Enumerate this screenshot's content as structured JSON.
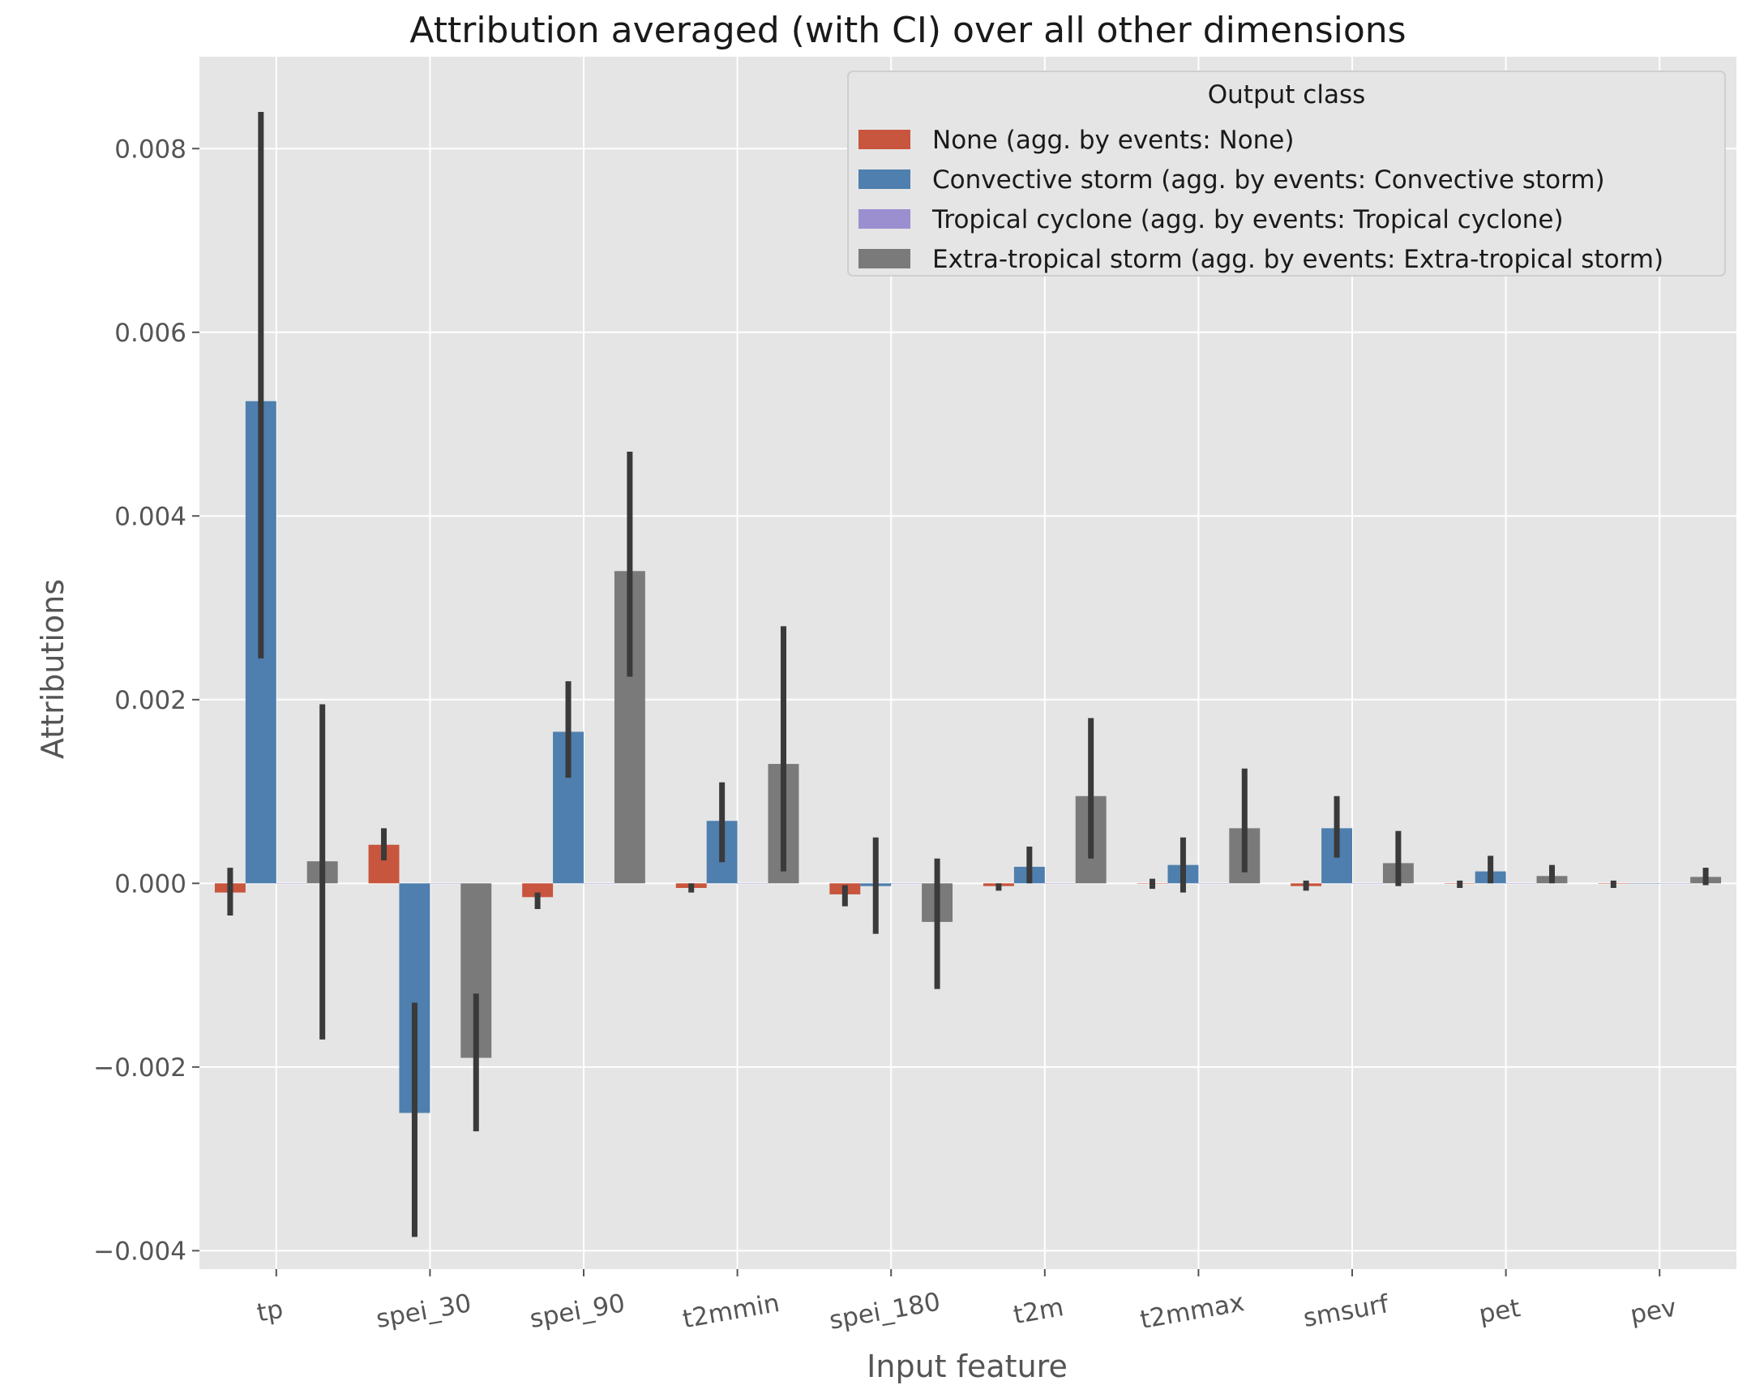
{
  "chart_data": {
    "type": "bar",
    "title": "Attribution averaged (with CI) over all other dimensions",
    "xlabel": "Input feature",
    "ylabel": "Attributions",
    "ylim": [
      -0.0042,
      0.009
    ],
    "yticks": [
      -0.004,
      -0.002,
      0.0,
      0.002,
      0.004,
      0.006,
      0.008
    ],
    "ytick_labels": [
      "−0.004",
      "−0.002",
      "0.000",
      "0.002",
      "0.004",
      "0.006",
      "0.008"
    ],
    "grid": true,
    "legend_position": "top-right",
    "legend_title": "Output class",
    "categories": [
      "tp",
      "spei_30",
      "spei_90",
      "t2mmin",
      "spei_180",
      "t2m",
      "t2mmax",
      "smsurf",
      "pet",
      "pev"
    ],
    "series": [
      {
        "name": "None (agg. by events: None)",
        "color": "#C8553D",
        "values": [
          -0.0001,
          0.00042,
          -0.00015,
          -5e-05,
          -0.00012,
          -3e-05,
          0.0,
          -3e-05,
          0.0,
          0.0
        ],
        "ci_low": [
          -0.00035,
          0.00025,
          -0.00028,
          -0.0001,
          -0.00025,
          -8e-05,
          -6e-05,
          -8e-05,
          -5e-05,
          -5e-05
        ],
        "ci_high": [
          0.00017,
          0.0006,
          -0.0001,
          0.0,
          -2e-05,
          0.0,
          5e-05,
          3e-05,
          3e-05,
          3e-05
        ]
      },
      {
        "name": "Convective storm (agg. by events: Convective storm)",
        "color": "#4E7FAE",
        "values": [
          0.00525,
          -0.0025,
          0.00165,
          0.00068,
          -3e-05,
          0.00018,
          0.0002,
          0.0006,
          0.00013,
          0.0
        ],
        "ci_low": [
          0.00245,
          -0.00385,
          0.00115,
          0.00023,
          -0.00055,
          0.0,
          -0.0001,
          0.00028,
          0.0,
          0.0
        ],
        "ci_high": [
          0.0084,
          -0.0013,
          0.0022,
          0.0011,
          0.0005,
          0.0004,
          0.0005,
          0.00095,
          0.0003,
          0.0
        ]
      },
      {
        "name": "Tropical cyclone (agg. by events: Tropical cyclone)",
        "color": "#9C8FD0",
        "values": [
          0,
          0,
          0,
          0,
          0,
          0,
          0,
          0,
          0,
          0
        ],
        "ci_low": [
          0,
          0,
          0,
          0,
          0,
          0,
          0,
          0,
          0,
          0
        ],
        "ci_high": [
          0,
          0,
          0,
          0,
          0,
          0,
          0,
          0,
          0,
          0
        ]
      },
      {
        "name": "Extra-tropical storm (agg. by events: Extra-tropical storm)",
        "color": "#7A7A7A",
        "values": [
          0.00024,
          -0.0019,
          0.0034,
          0.0013,
          -0.00042,
          0.00095,
          0.0006,
          0.00022,
          8e-05,
          7e-05
        ],
        "ci_low": [
          -0.0017,
          -0.0027,
          0.00225,
          0.00013,
          -0.00115,
          0.00027,
          0.00012,
          -3e-05,
          0.0,
          -2e-05
        ],
        "ci_high": [
          0.00195,
          -0.0012,
          0.0047,
          0.0028,
          0.00027,
          0.0018,
          0.00125,
          0.00057,
          0.0002,
          0.00017
        ]
      }
    ]
  }
}
